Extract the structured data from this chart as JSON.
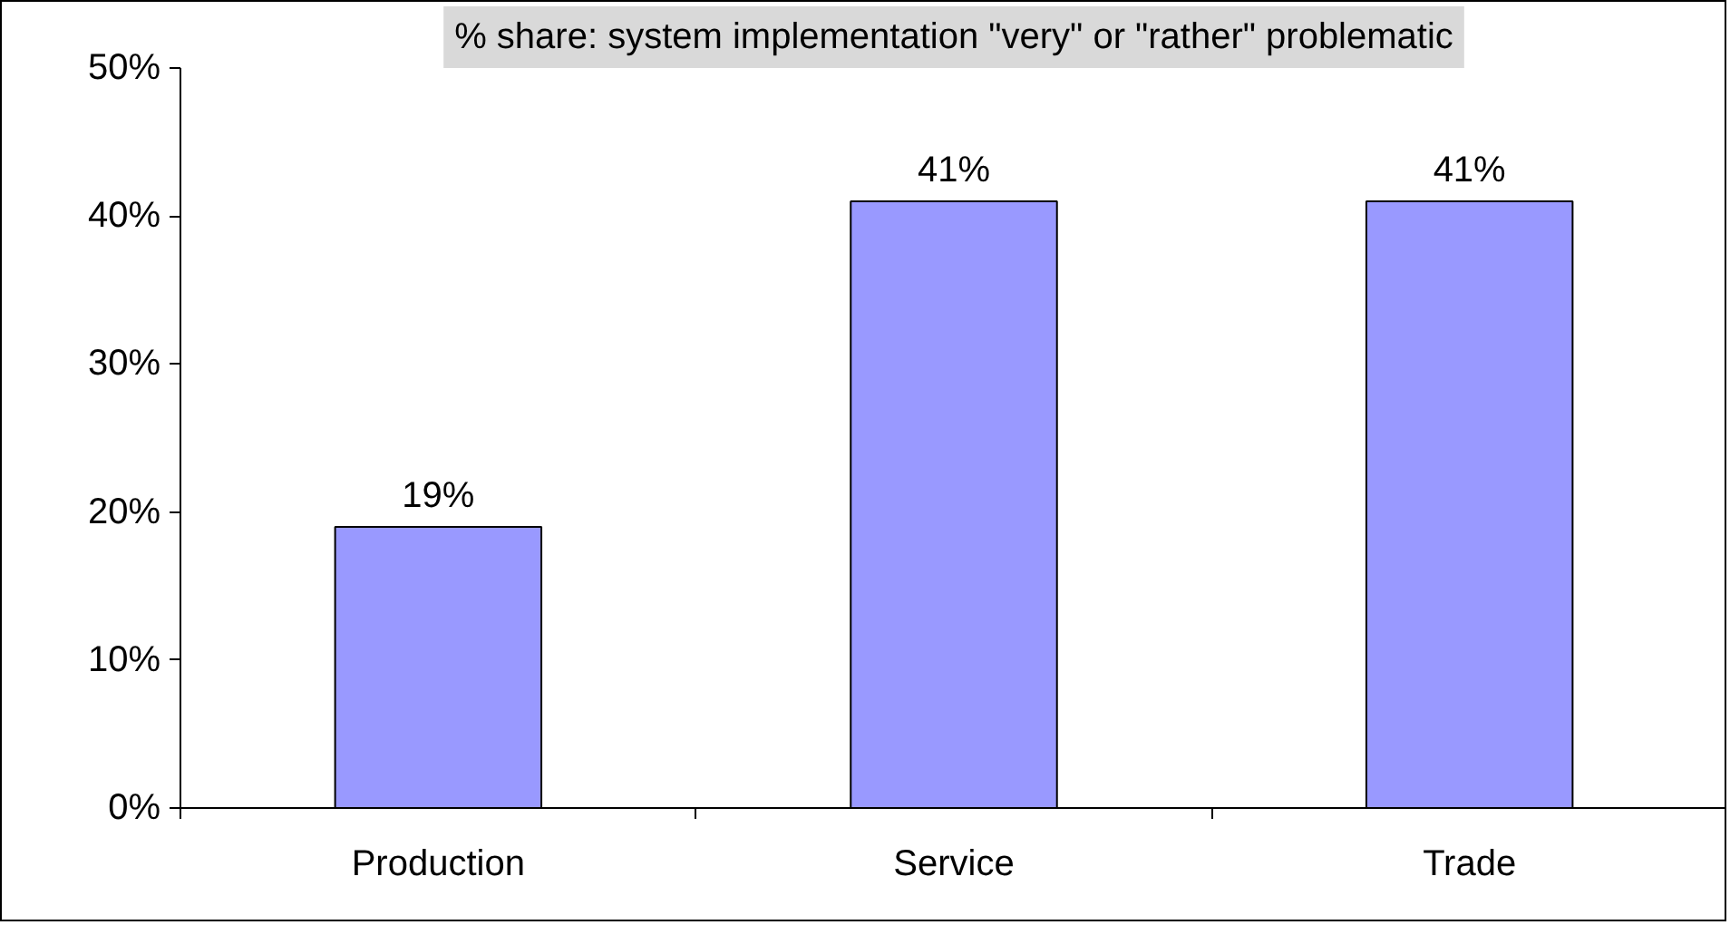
{
  "chart_data": {
    "type": "bar",
    "title": "% share: system implementation \"very\" or \"rather\" problematic",
    "categories": [
      "Production",
      "Service",
      "Trade"
    ],
    "values": [
      19,
      41,
      41
    ],
    "value_labels": [
      "19%",
      "41%",
      "41%"
    ],
    "color": "#9999ff",
    "ylim": [
      0,
      50
    ],
    "yticks": [
      {
        "value": 0,
        "label": "0%"
      },
      {
        "value": 10,
        "label": "10%"
      },
      {
        "value": 20,
        "label": "20%"
      },
      {
        "value": 30,
        "label": "30%"
      },
      {
        "value": 40,
        "label": "40%"
      },
      {
        "value": 50,
        "label": "50%"
      }
    ]
  }
}
